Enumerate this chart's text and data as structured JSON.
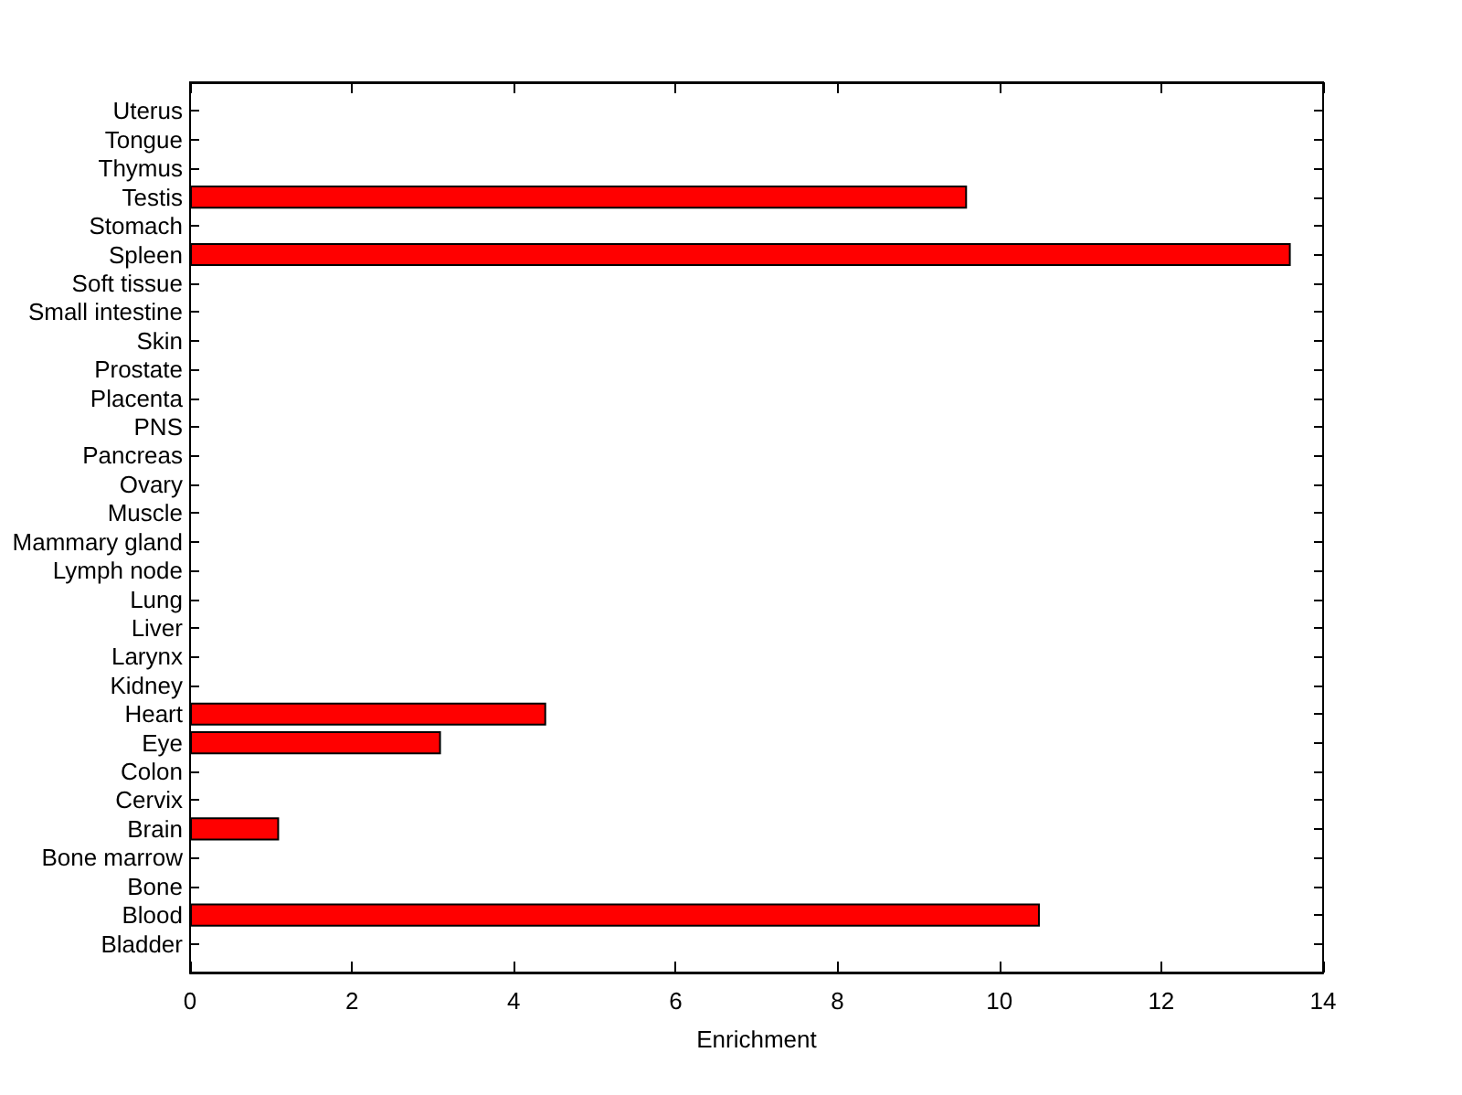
{
  "chart_data": {
    "type": "bar",
    "orientation": "horizontal",
    "xlabel": "Enrichment",
    "categories": [
      "Uterus",
      "Tongue",
      "Thymus",
      "Testis",
      "Stomach",
      "Spleen",
      "Soft tissue",
      "Small intestine",
      "Skin",
      "Prostate",
      "Placenta",
      "PNS",
      "Pancreas",
      "Ovary",
      "Muscle",
      "Mammary gland",
      "Lymph node",
      "Lung",
      "Liver",
      "Larynx",
      "Kidney",
      "Heart",
      "Eye",
      "Colon",
      "Cervix",
      "Brain",
      "Bone marrow",
      "Bone",
      "Blood",
      "Bladder"
    ],
    "values": [
      0,
      0,
      0,
      9.6,
      0,
      13.6,
      0,
      0,
      0,
      0,
      0,
      0,
      0,
      0,
      0,
      0,
      0,
      0,
      0,
      0,
      0,
      4.4,
      3.1,
      0,
      0,
      1.1,
      0,
      0,
      10.5,
      0
    ],
    "color": "#ff0000",
    "xlim": [
      0,
      14
    ],
    "xticks": [
      0,
      2,
      4,
      6,
      8,
      10,
      12,
      14
    ]
  }
}
